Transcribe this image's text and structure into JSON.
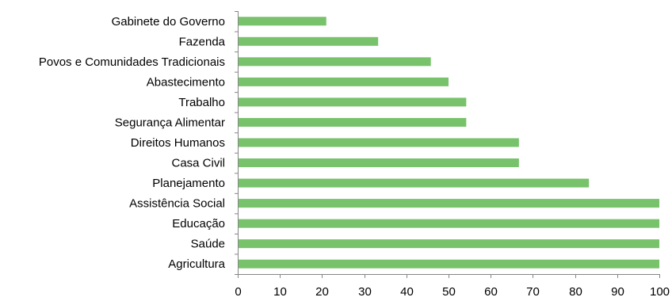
{
  "chart_data": {
    "type": "bar",
    "orientation": "horizontal",
    "title": "",
    "xlabel": "",
    "ylabel": "",
    "categories": [
      "Gabinete do Governo",
      "Fazenda",
      "Povos e Comunidades Tradicionais",
      "Abastecimento",
      "Trabalho",
      "Segurança Alimentar",
      "Direitos Humanos",
      "Casa Civil",
      "Planejamento",
      "Assistência Social",
      "Educação",
      "Saúde",
      "Agricultura"
    ],
    "values": [
      21,
      33.3,
      45.8,
      50,
      54.2,
      54.2,
      66.7,
      66.7,
      83.3,
      100,
      100,
      100,
      100
    ],
    "xlim": [
      0,
      100
    ],
    "xticks": [
      "0",
      "10",
      "20",
      "30",
      "40",
      "50",
      "60",
      "70",
      "80",
      "90",
      "100"
    ],
    "grid": false,
    "legend": "none",
    "bar_color": "#77c26a"
  }
}
